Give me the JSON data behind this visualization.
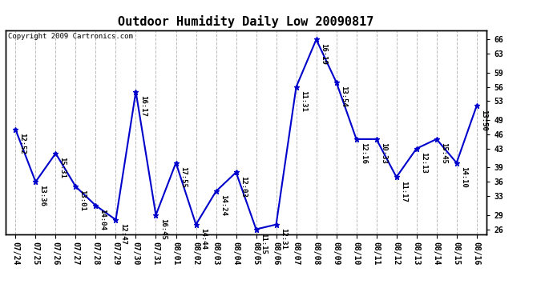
{
  "title": "Outdoor Humidity Daily Low 20090817",
  "copyright": "Copyright 2009 Cartronics.com",
  "x_labels": [
    "07/24",
    "07/25",
    "07/26",
    "07/27",
    "07/28",
    "07/29",
    "07/30",
    "07/31",
    "08/01",
    "08/02",
    "08/03",
    "08/04",
    "08/05",
    "08/06",
    "08/07",
    "08/08",
    "08/09",
    "08/10",
    "08/11",
    "08/12",
    "08/13",
    "08/14",
    "08/15",
    "08/16"
  ],
  "y_values": [
    47,
    36,
    42,
    35,
    31,
    28,
    55,
    29,
    40,
    27,
    34,
    38,
    26,
    27,
    56,
    66,
    57,
    45,
    45,
    37,
    43,
    45,
    40,
    52
  ],
  "point_labels": [
    "12:52",
    "13:36",
    "15:31",
    "13:01",
    "14:04",
    "12:47",
    "16:17",
    "16:45",
    "17:55",
    "14:44",
    "14:24",
    "12:03",
    "11:15",
    "12:31",
    "11:31",
    "16:19",
    "13:54",
    "12:16",
    "10:33",
    "11:17",
    "12:13",
    "15:45",
    "14:10",
    "13:50"
  ],
  "line_color": "#0000cc",
  "marker_color": "#0000cc",
  "bg_color": "#ffffff",
  "grid_color": "#bbbbbb",
  "ylim": [
    25,
    68
  ],
  "yticks": [
    26,
    29,
    33,
    36,
    39,
    43,
    46,
    49,
    53,
    56,
    59,
    63,
    66
  ],
  "title_fontsize": 11,
  "label_fontsize": 6.5,
  "tick_fontsize": 7,
  "copyright_fontsize": 6.5
}
